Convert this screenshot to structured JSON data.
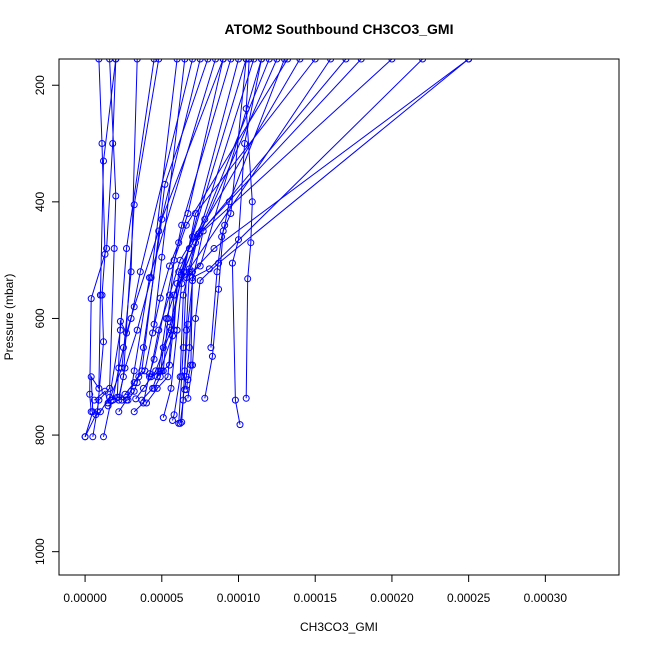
{
  "chart_data": {
    "type": "line",
    "title": "ATOM2 Southbound CH3CO3_GMI",
    "xlabel": "CH3CO3_GMI",
    "ylabel": "Pressure (mbar)",
    "xlim": [
      -1.7e-05,
      0.000348
    ],
    "ylim": [
      1040,
      155
    ],
    "y_reversed": true,
    "grid": false,
    "series_color": "#0000ff",
    "marker": "open-circle",
    "x_ticks": [
      {
        "value": 0.0,
        "label": "0.00000"
      },
      {
        "value": 5e-05,
        "label": "0.00005"
      },
      {
        "value": 0.0001,
        "label": "0.00010"
      },
      {
        "value": 0.00015,
        "label": "0.00015"
      },
      {
        "value": 0.0002,
        "label": "0.00020"
      },
      {
        "value": 0.00025,
        "label": "0.00025"
      },
      {
        "value": 0.0003,
        "label": "0.00030"
      }
    ],
    "y_ticks": [
      {
        "value": 200,
        "label": "200"
      },
      {
        "value": 400,
        "label": "400"
      },
      {
        "value": 600,
        "label": "600"
      },
      {
        "value": 800,
        "label": "800"
      },
      {
        "value": 1000,
        "label": "1000"
      }
    ],
    "series": [
      {
        "x": [
          0.0,
          8e-06,
          1.2e-05,
          1.1e-05,
          1.3e-05,
          1.1e-05,
          9e-06
        ],
        "y": [
          803,
          760,
          640,
          560,
          490,
          300,
          155
        ]
      },
      {
        "x": [
          0.0,
          5e-06,
          4e-06,
          9e-06,
          1e-05,
          1.2e-05,
          2e-05
        ],
        "y": [
          803,
          760,
          700,
          720,
          560,
          330,
          155
        ]
      },
      {
        "x": [
          5e-06,
          9e-06,
          1.6e-05,
          1.9e-05,
          2e-05,
          1.6e-05
        ],
        "y": [
          803,
          740,
          720,
          480,
          390,
          155
        ]
      },
      {
        "x": [
          4e-06,
          3e-06,
          4e-06,
          1.4e-05,
          1.8e-05,
          2e-05
        ],
        "y": [
          760,
          730,
          566,
          480,
          300,
          155
        ]
      },
      {
        "x": [
          6e-06,
          1.3e-05,
          1.5e-05,
          2.4e-05,
          3e-05,
          3.4e-05
        ],
        "y": [
          740,
          725,
          745,
          685,
          520,
          155
        ]
      },
      {
        "x": [
          7e-06,
          1e-05,
          1.6e-05,
          2.3e-05,
          2.7e-05,
          4.5e-05
        ],
        "y": [
          765,
          760,
          735,
          620,
          480,
          155
        ]
      },
      {
        "x": [
          1.2e-05,
          1.7e-05,
          2.2e-05,
          2.5e-05,
          3.2e-05,
          4.8e-05
        ],
        "y": [
          803,
          740,
          735,
          700,
          405,
          155
        ]
      },
      {
        "x": [
          1.5e-05,
          2.2e-05,
          2.6e-05,
          3.4e-05,
          4.3e-05,
          6e-05
        ],
        "y": [
          750,
          740,
          685,
          620,
          530,
          155
        ]
      },
      {
        "x": [
          1.8e-05,
          2.2e-05,
          2.5e-05,
          3e-05,
          3.6e-05,
          7e-05
        ],
        "y": [
          740,
          685,
          650,
          600,
          520,
          155
        ]
      },
      {
        "x": [
          2.1e-05,
          2.3e-05,
          2.7e-05,
          3.2e-05,
          4.8e-05,
          7.5e-05
        ],
        "y": [
          735,
          605,
          625,
          580,
          450,
          155
        ]
      },
      {
        "x": [
          2.2e-05,
          2.7e-05,
          3.2e-05,
          3.7e-05,
          5.2e-05,
          8e-05
        ],
        "y": [
          760,
          740,
          710,
          690,
          370,
          155
        ]
      },
      {
        "x": [
          2.4e-05,
          2.7e-05,
          3e-05,
          3.2e-05,
          4.2e-05,
          8.5e-05
        ],
        "y": [
          740,
          735,
          725,
          690,
          530,
          155
        ]
      },
      {
        "x": [
          2.8e-05,
          3.2e-05,
          3.4e-05,
          3.8e-05,
          5e-05,
          9e-05
        ],
        "y": [
          740,
          725,
          710,
          650,
          430,
          155
        ]
      },
      {
        "x": [
          2.6e-05,
          3.5e-05,
          3.9e-05,
          4.5e-05,
          5e-05,
          6.5e-05
        ],
        "y": [
          730,
          700,
          690,
          610,
          495,
          155
        ]
      },
      {
        "x": [
          3.2e-05,
          3.8e-05,
          4.2e-05,
          4.5e-05,
          6.3e-05,
          9.5e-05
        ],
        "y": [
          760,
          745,
          695,
          670,
          440,
          155
        ]
      },
      {
        "x": [
          3.3e-05,
          3.8e-05,
          4.6e-05,
          5.6e-05,
          6.3e-05,
          0.0001
        ],
        "y": [
          738,
          720,
          690,
          620,
          525,
          155
        ]
      },
      {
        "x": [
          3.7e-05,
          4.4e-05,
          4.8e-05,
          5.3e-05,
          7e-05,
          0.000105
        ],
        "y": [
          740,
          720,
          690,
          600,
          460,
          155
        ]
      },
      {
        "x": [
          4e-05,
          4.7e-05,
          5.4e-05,
          5.8e-05,
          7.2e-05,
          0.00011
        ],
        "y": [
          745,
          720,
          700,
          560,
          470,
          155
        ]
      },
      {
        "x": [
          4.3e-05,
          4.9e-05,
          5.8e-05,
          6e-05,
          7.5e-05,
          0.000115
        ],
        "y": [
          700,
          690,
          620,
          540,
          510,
          155
        ]
      },
      {
        "x": [
          4.2e-05,
          4.8e-05,
          5.5e-05,
          6.2e-05,
          7.8e-05,
          0.00012
        ],
        "y": [
          700,
          620,
          560,
          500,
          430,
          155
        ]
      },
      {
        "x": [
          4.5e-05,
          4.9e-05,
          5.1e-05,
          5.5e-05,
          6.4e-05,
          0.000125
        ],
        "y": [
          720,
          700,
          650,
          615,
          520,
          155
        ]
      },
      {
        "x": [
          4.7e-05,
          5.1e-05,
          5.4e-05,
          5.8e-05,
          6.6e-05,
          0.000132
        ],
        "y": [
          700,
          690,
          600,
          500,
          440,
          155
        ]
      },
      {
        "x": [
          5e-05,
          5.5e-05,
          5.7e-05,
          6.1e-05,
          6.8e-05,
          0.00014
        ],
        "y": [
          690,
          680,
          630,
          520,
          480,
          155
        ]
      },
      {
        "x": [
          5.1e-05,
          5.6e-05,
          6e-05,
          6.3e-05,
          7.2e-05,
          0.00015
        ],
        "y": [
          770,
          720,
          620,
          540,
          420,
          155
        ]
      },
      {
        "x": [
          5.7e-05,
          5.8e-05,
          6.2e-05,
          6.4e-05,
          6.8e-05,
          0.00016
        ],
        "y": [
          775,
          765,
          700,
          560,
          515,
          155
        ]
      },
      {
        "x": [
          6.1e-05,
          6.3e-05,
          6.4e-05,
          6.6e-05,
          7.3e-05,
          0.00017
        ],
        "y": [
          780,
          700,
          650,
          530,
          460,
          155
        ]
      },
      {
        "x": [
          6.2e-05,
          6.4e-05,
          6.6e-05,
          6.8e-05,
          7.4e-05,
          0.00018
        ],
        "y": [
          780,
          740,
          620,
          520,
          455,
          155
        ]
      },
      {
        "x": [
          6.3e-05,
          6.5e-05,
          6.7e-05,
          7e-05,
          7.7e-05,
          0.0002
        ],
        "y": [
          778,
          690,
          610,
          535,
          450,
          155
        ]
      },
      {
        "x": [
          6.5e-05,
          6.6e-05,
          6.8e-05,
          7e-05,
          8.1e-05,
          0.00022
        ],
        "y": [
          722,
          700,
          650,
          530,
          515,
          155
        ]
      },
      {
        "x": [
          6.6e-05,
          6.7e-05,
          6.9e-05,
          7e-05,
          8.4e-05,
          0.00025
        ],
        "y": [
          722,
          705,
          680,
          520,
          480,
          155
        ]
      },
      {
        "x": [
          6.7e-05,
          7e-05,
          7.2e-05,
          7.5e-05,
          8.7e-05,
          0.00025
        ],
        "y": [
          737,
          680,
          600,
          535,
          505,
          155
        ]
      },
      {
        "x": [
          7.8e-05,
          8.3e-05,
          8.7e-05,
          9e-05,
          9.5e-05,
          0.000105
        ],
        "y": [
          737,
          665,
          550,
          450,
          420,
          155
        ]
      },
      {
        "x": [
          0.000101,
          9.8e-05,
          9.6e-05,
          0.0001,
          0.000104,
          0.000115
        ],
        "y": [
          782,
          740,
          505,
          465,
          300,
          155
        ]
      },
      {
        "x": [
          0.000105,
          0.000106,
          0.000108,
          0.000109,
          0.000105,
          0.000107
        ],
        "y": [
          737,
          532,
          470,
          400,
          240,
          155
        ]
      },
      {
        "x": [
          8.2e-05,
          8.6e-05,
          8.9e-05,
          9.1e-05,
          9.4e-05,
          0.00013
        ],
        "y": [
          650,
          520,
          460,
          440,
          400,
          155
        ]
      },
      {
        "x": [
          4.4e-05,
          4.9e-05,
          5.5e-05,
          6.1e-05,
          6.7e-05,
          9e-05
        ],
        "y": [
          625,
          565,
          510,
          470,
          420,
          155
        ]
      }
    ]
  }
}
